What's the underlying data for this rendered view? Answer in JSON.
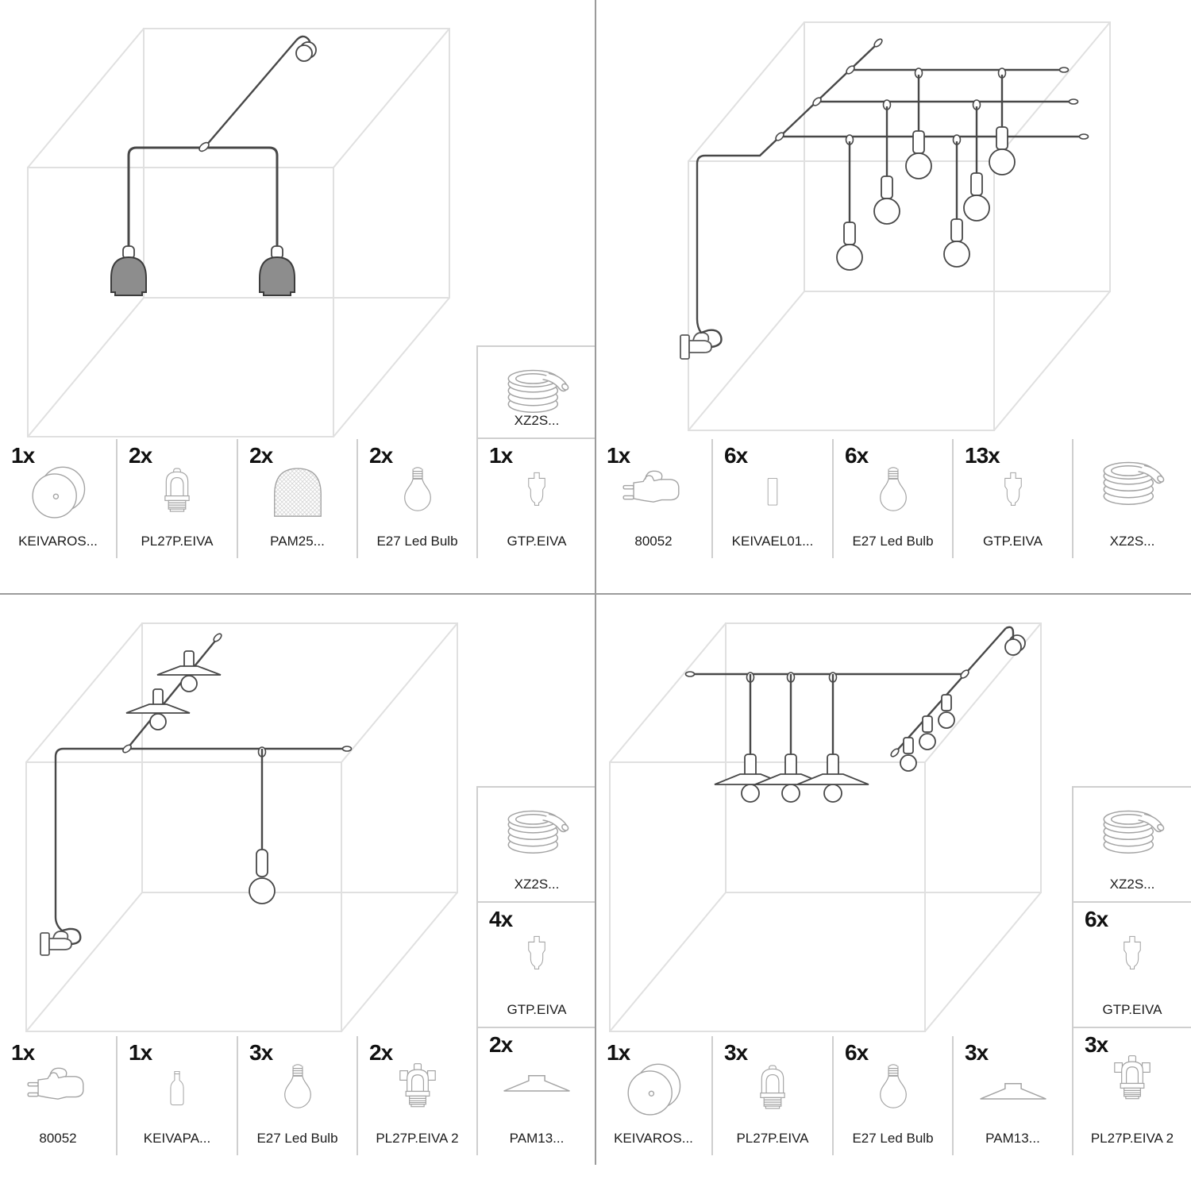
{
  "page": {
    "background": "#ffffff",
    "divider_color": "#9b9b9b",
    "cell_border_color": "#cfcfcf",
    "cable_color": "#484848",
    "cube_color": "#e0e0e0",
    "dome_fill_color": "#8d8d8d"
  },
  "quadrants": [
    {
      "name": "kit-1-top-left",
      "diagram": "wall-mounted double pendant with two dome shades in room cube",
      "parts": [
        {
          "qty": "1x",
          "icon": "ceiling-rose",
          "label": "KEIVAROS..."
        },
        {
          "qty": "2x",
          "icon": "lamp-holder",
          "label": "PL27P.EIVA"
        },
        {
          "qty": "2x",
          "icon": "dome-shade",
          "label": "PAM25..."
        },
        {
          "qty": "2x",
          "icon": "led-bulb",
          "label": "E27 Led Bulb"
        },
        {
          "qty": "1x",
          "icon": "ceiling-hook",
          "label": "GTP.EIVA"
        }
      ],
      "extra_parts": [
        {
          "qty": "",
          "icon": "cable-coil",
          "label": "XZ2S..."
        }
      ]
    },
    {
      "name": "kit-2-top-right",
      "diagram": "plug-in ceiling grid with six hanging bulbs in room cube",
      "parts": [
        {
          "qty": "1x",
          "icon": "plug",
          "label": "80052"
        },
        {
          "qty": "6x",
          "icon": "cable-clip",
          "label": "KEIVAEL01..."
        },
        {
          "qty": "6x",
          "icon": "led-bulb",
          "label": "E27 Led Bulb"
        },
        {
          "qty": "13x",
          "icon": "ceiling-hook",
          "label": "GTP.EIVA"
        },
        {
          "qty": "",
          "icon": "cable-coil",
          "label": "XZ2S..."
        }
      ],
      "extra_parts": []
    },
    {
      "name": "kit-3-bottom-left",
      "diagram": "plug-in line with two flat-shade lamps on slope and one pendant bulb",
      "parts": [
        {
          "qty": "1x",
          "icon": "plug",
          "label": "80052"
        },
        {
          "qty": "1x",
          "icon": "bottle-holder",
          "label": "KEIVAPA..."
        },
        {
          "qty": "3x",
          "icon": "led-bulb",
          "label": "E27 Led Bulb"
        },
        {
          "qty": "2x",
          "icon": "lamp-holder-2",
          "label": "PL27P.EIVA 2"
        }
      ],
      "extra_parts": [
        {
          "qty": "",
          "icon": "cable-coil",
          "label": "XZ2S..."
        },
        {
          "qty": "4x",
          "icon": "ceiling-hook",
          "label": "GTP.EIVA"
        },
        {
          "qty": "2x",
          "icon": "flat-shade",
          "label": "PAM13..."
        }
      ]
    },
    {
      "name": "kit-4-bottom-right",
      "diagram": "ceiling rose line with three bulbs on slope and three flat-shade pendants",
      "parts": [
        {
          "qty": "1x",
          "icon": "ceiling-rose",
          "label": "KEIVAROS..."
        },
        {
          "qty": "3x",
          "icon": "lamp-holder",
          "label": "PL27P.EIVA"
        },
        {
          "qty": "6x",
          "icon": "led-bulb",
          "label": "E27 Led Bulb"
        },
        {
          "qty": "3x",
          "icon": "flat-shade",
          "label": "PAM13..."
        }
      ],
      "extra_parts": [
        {
          "qty": "",
          "icon": "cable-coil",
          "label": "XZ2S..."
        },
        {
          "qty": "6x",
          "icon": "ceiling-hook",
          "label": "GTP.EIVA"
        },
        {
          "qty": "3x",
          "icon": "lamp-holder-2",
          "label": "PL27P.EIVA 2"
        }
      ]
    }
  ]
}
